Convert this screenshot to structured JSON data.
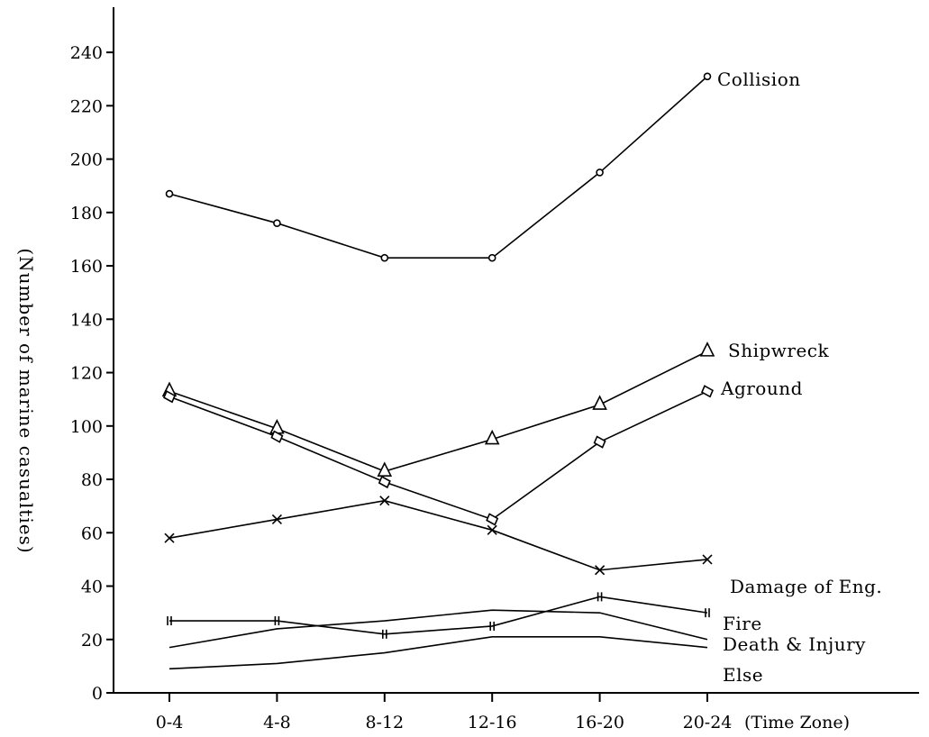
{
  "chart_data": {
    "type": "line",
    "title": "",
    "xlabel": "(Time Zone)",
    "ylabel": "(Number of marine casualties)",
    "categories": [
      "0-4",
      "4-8",
      "8-12",
      "12-16",
      "16-20",
      "20-24"
    ],
    "ylim": [
      0,
      260
    ],
    "yticks": [
      0,
      20,
      40,
      60,
      80,
      100,
      120,
      140,
      160,
      180,
      200,
      220,
      240
    ],
    "grid": false,
    "legend": "labels at end of lines",
    "series": [
      {
        "name": "Collision",
        "marker": "circle",
        "values": [
          187,
          176,
          163,
          163,
          195,
          231
        ]
      },
      {
        "name": "Shipwreck",
        "marker": "triangle",
        "values": [
          113,
          99,
          83,
          95,
          108,
          128
        ]
      },
      {
        "name": "Aground",
        "marker": "diamond",
        "values": [
          111,
          96,
          79,
          65,
          94,
          113
        ]
      },
      {
        "name": "Damage of Eng.",
        "marker": "cross",
        "values": [
          58,
          65,
          72,
          61,
          46,
          50
        ]
      },
      {
        "name": "Fire",
        "marker": "double-bar",
        "values": [
          27,
          27,
          22,
          25,
          36,
          30
        ]
      },
      {
        "name": "Death & Injury",
        "marker": "none",
        "values": [
          17,
          24,
          27,
          31,
          30,
          20
        ]
      },
      {
        "name": "Else",
        "marker": "none",
        "values": [
          9,
          11,
          15,
          21,
          21,
          17
        ]
      }
    ]
  }
}
